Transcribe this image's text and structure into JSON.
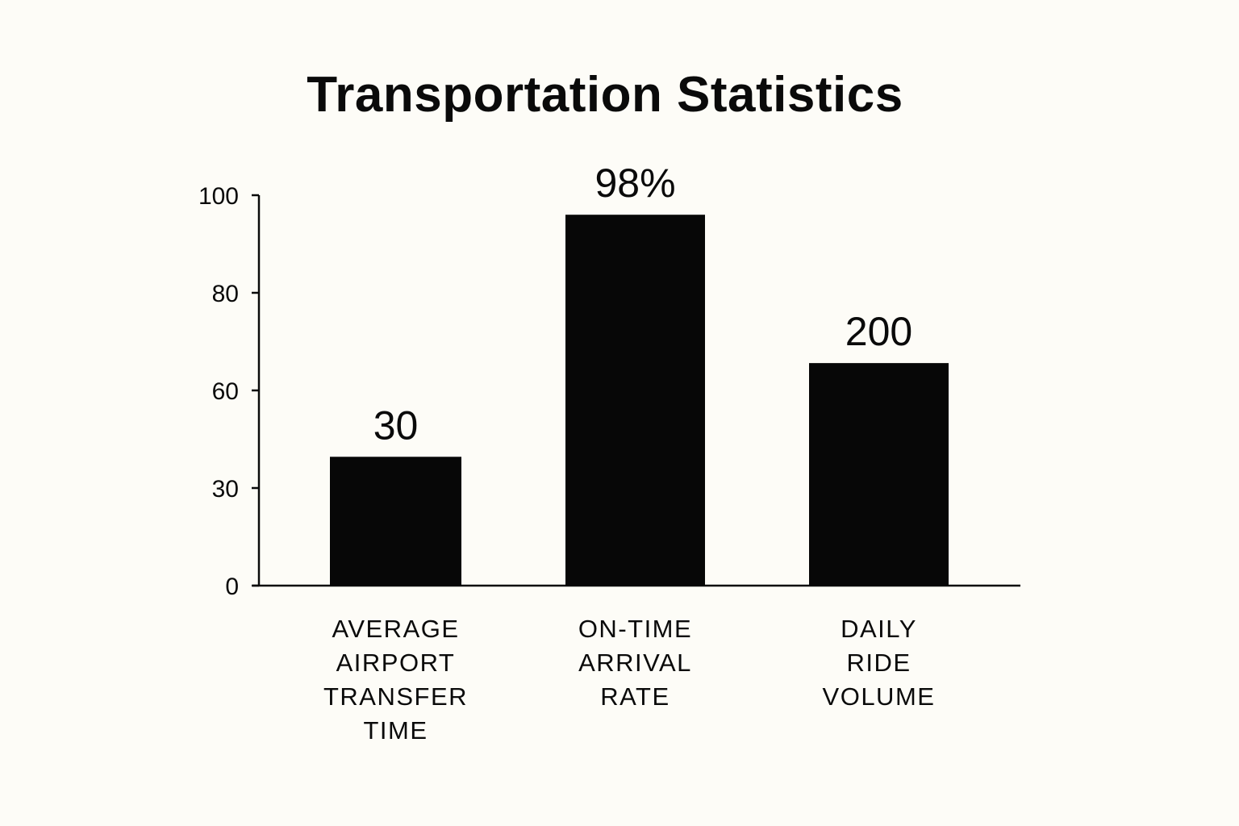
{
  "chart_data": {
    "type": "bar",
    "title": "Transportation Statistics",
    "xlabel": "",
    "ylabel": "",
    "y_ticks": [
      {
        "value": 0,
        "label": "0"
      },
      {
        "value": 30,
        "label": "30"
      },
      {
        "value": 60,
        "label": "60"
      },
      {
        "value": 80,
        "label": "80"
      },
      {
        "value": 100,
        "label": "100"
      }
    ],
    "categories": [
      [
        "AVERAGE",
        "AIRPORT",
        "TRANSFER",
        "TIME"
      ],
      [
        "ON-TIME",
        "ARRIVAL",
        "RATE"
      ],
      [
        "DAILY",
        "RIDE",
        "VOLUME"
      ]
    ],
    "values": [
      33,
      95,
      57
    ],
    "value_labels": [
      "30",
      "98%",
      "200"
    ],
    "grid": false,
    "legend": "none",
    "bar_color": "#070707"
  }
}
